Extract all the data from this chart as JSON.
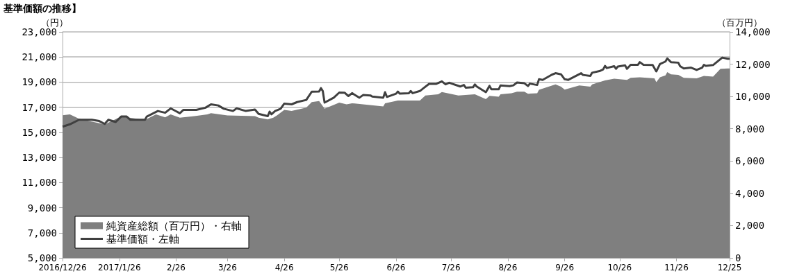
{
  "chart_data": {
    "type": "line",
    "title": "基準価額の推移】",
    "ylabel": "（円）",
    "y2label": "（百万円）",
    "xlim": [
      "2016-12-26",
      "2017-12-25"
    ],
    "xticks": [
      {
        "value": "2016-12-26",
        "label": "2016/12/26"
      },
      {
        "value": "2017-01-26",
        "label": "2017/1/26"
      },
      {
        "value": "2017-02-26",
        "label": "2/26"
      },
      {
        "value": "2017-03-26",
        "label": "3/26"
      },
      {
        "value": "2017-04-26",
        "label": "4/26"
      },
      {
        "value": "2017-05-26",
        "label": "5/26"
      },
      {
        "value": "2017-06-26",
        "label": "6/26"
      },
      {
        "value": "2017-07-26",
        "label": "7/26"
      },
      {
        "value": "2017-08-26",
        "label": "8/26"
      },
      {
        "value": "2017-09-26",
        "label": "9/26"
      },
      {
        "value": "2017-10-26",
        "label": "10/26"
      },
      {
        "value": "2017-11-26",
        "label": "11/26"
      },
      {
        "value": "2017-12-25",
        "label": "12/25"
      }
    ],
    "ylim": [
      5000,
      23000
    ],
    "yticks": [
      {
        "value": 5000,
        "label": "5,000"
      },
      {
        "value": 7000,
        "label": "7,000"
      },
      {
        "value": 9000,
        "label": "9,000"
      },
      {
        "value": 11000,
        "label": "11,000"
      },
      {
        "value": 13000,
        "label": "13,000"
      },
      {
        "value": 15000,
        "label": "15,000"
      },
      {
        "value": 17000,
        "label": "17,000"
      },
      {
        "value": 19000,
        "label": "19,000"
      },
      {
        "value": 21000,
        "label": "21,000"
      },
      {
        "value": 23000,
        "label": "23,000"
      }
    ],
    "y2lim": [
      0,
      14000
    ],
    "y2ticks": [
      0,
      {
        "value": 2000,
        "label": "2,000"
      },
      {
        "value": 4000,
        "label": "4,000"
      },
      {
        "value": 6000,
        "label": "6,000"
      },
      {
        "value": 8000,
        "label": "8,000"
      },
      {
        "value": 10000,
        "label": "10,000"
      },
      {
        "value": 12000,
        "label": "12,000"
      },
      {
        "value": 14000,
        "label": "14,000"
      }
    ],
    "grid": "y",
    "legend": "bottom left",
    "series": [
      {
        "name": "純資産総額（百万円）・右軸",
        "type": "area",
        "axis": "y2",
        "color": "#7f7f7f",
        "x": [
          "2016-12-26",
          "2016-12-30",
          "2017-01-04",
          "2017-01-18",
          "2017-01-27",
          "2017-02-09",
          "2017-02-15",
          "2017-02-20",
          "2017-02-23",
          "2017-02-28",
          "2017-03-08",
          "2017-03-15",
          "2017-03-17",
          "2017-03-26",
          "2017-04-10",
          "2017-04-12",
          "2017-04-17",
          "2017-04-20",
          "2017-04-22",
          "2017-04-26",
          "2017-04-30",
          "2017-05-08",
          "2017-05-11",
          "2017-05-15",
          "2017-05-18",
          "2017-05-26",
          "2017-05-30",
          "2017-06-02",
          "2017-06-19",
          "2017-06-20",
          "2017-06-27",
          "2017-07-09",
          "2017-07-12",
          "2017-07-19",
          "2017-07-21",
          "2017-07-30",
          "2017-08-08",
          "2017-08-14",
          "2017-08-16",
          "2017-08-21",
          "2017-08-22",
          "2017-08-28",
          "2017-08-31",
          "2017-09-04",
          "2017-09-06",
          "2017-09-11",
          "2017-09-12",
          "2017-09-21",
          "2017-09-24",
          "2017-09-26",
          "2017-10-04",
          "2017-10-10",
          "2017-10-11",
          "2017-10-18",
          "2017-10-23",
          "2017-10-30",
          "2017-11-01",
          "2017-11-06",
          "2017-11-14",
          "2017-11-15",
          "2017-11-17",
          "2017-11-20",
          "2017-11-21",
          "2017-11-23",
          "2017-11-27",
          "2017-11-30",
          "2017-12-07",
          "2017-12-11",
          "2017-12-16",
          "2017-12-20",
          "2017-12-24",
          "2017-12-25"
        ],
        "values": [
          8840,
          8890,
          8620,
          8270,
          8760,
          8550,
          8890,
          8710,
          8890,
          8690,
          8780,
          8890,
          8960,
          8820,
          8780,
          8690,
          8580,
          8690,
          8820,
          9170,
          9100,
          9310,
          9650,
          9720,
          9240,
          9620,
          9510,
          9580,
          9380,
          9580,
          9750,
          9750,
          10060,
          10130,
          10270,
          10060,
          10130,
          9830,
          10040,
          9990,
          10130,
          10200,
          10300,
          10300,
          10170,
          10200,
          10410,
          10750,
          10610,
          10430,
          10680,
          10610,
          10750,
          10990,
          11100,
          11030,
          11160,
          11190,
          11120,
          10890,
          11190,
          11300,
          11510,
          11370,
          11340,
          11160,
          11120,
          11270,
          11230,
          11710,
          11740,
          11740
        ]
      },
      {
        "name": "基準価額・左軸",
        "type": "line",
        "color": "#404040",
        "x": [
          "2016-12-26",
          "2016-12-30",
          "2017-01-04",
          "2017-01-11",
          "2017-01-15",
          "2017-01-18",
          "2017-01-20",
          "2017-01-24",
          "2017-01-27",
          "2017-01-30",
          "2017-02-01",
          "2017-02-09",
          "2017-02-10",
          "2017-02-16",
          "2017-02-20",
          "2017-02-23",
          "2017-02-28",
          "2017-03-02",
          "2017-03-09",
          "2017-03-14",
          "2017-03-17",
          "2017-03-21",
          "2017-03-24",
          "2017-03-29",
          "2017-03-31",
          "2017-04-05",
          "2017-04-10",
          "2017-04-12",
          "2017-04-17",
          "2017-04-18",
          "2017-04-19",
          "2017-04-21",
          "2017-04-24",
          "2017-04-26",
          "2017-04-30",
          "2017-05-03",
          "2017-05-08",
          "2017-05-11",
          "2017-05-15",
          "2017-05-16",
          "2017-05-17",
          "2017-05-18",
          "2017-05-23",
          "2017-05-26",
          "2017-05-29",
          "2017-05-31",
          "2017-06-02",
          "2017-06-06",
          "2017-06-08",
          "2017-06-12",
          "2017-06-13",
          "2017-06-19",
          "2017-06-20",
          "2017-06-21",
          "2017-06-26",
          "2017-06-27",
          "2017-06-28",
          "2017-07-03",
          "2017-07-04",
          "2017-07-05",
          "2017-07-09",
          "2017-07-11",
          "2017-07-14",
          "2017-07-18",
          "2017-07-21",
          "2017-07-23",
          "2017-07-25",
          "2017-07-31",
          "2017-08-02",
          "2017-08-03",
          "2017-08-07",
          "2017-08-08",
          "2017-08-09",
          "2017-08-14",
          "2017-08-16",
          "2017-08-17",
          "2017-08-21",
          "2017-08-22",
          "2017-08-27",
          "2017-08-29",
          "2017-08-31",
          "2017-09-04",
          "2017-09-06",
          "2017-09-07",
          "2017-09-11",
          "2017-09-12",
          "2017-09-14",
          "2017-09-19",
          "2017-09-21",
          "2017-09-24",
          "2017-09-26",
          "2017-09-28",
          "2017-10-05",
          "2017-10-06",
          "2017-10-10",
          "2017-10-11",
          "2017-10-15",
          "2017-10-17",
          "2017-10-18",
          "2017-10-19",
          "2017-10-23",
          "2017-10-24",
          "2017-10-25",
          "2017-10-29",
          "2017-10-30",
          "2017-11-01",
          "2017-11-05",
          "2017-11-06",
          "2017-11-08",
          "2017-11-13",
          "2017-11-15",
          "2017-11-17",
          "2017-11-20",
          "2017-11-21",
          "2017-11-23",
          "2017-11-27",
          "2017-11-28",
          "2017-11-30",
          "2017-12-04",
          "2017-12-07",
          "2017-12-10",
          "2017-12-11",
          "2017-12-12",
          "2017-12-16",
          "2017-12-19",
          "2017-12-21",
          "2017-12-24",
          "2017-12-25"
        ],
        "values": [
          15450,
          15640,
          16000,
          16000,
          15900,
          15670,
          16000,
          15820,
          16260,
          16260,
          16000,
          16000,
          16260,
          16700,
          16560,
          16910,
          16520,
          16790,
          16790,
          16960,
          17230,
          17140,
          16880,
          16700,
          16910,
          16700,
          16820,
          16470,
          16290,
          16650,
          16440,
          16700,
          16880,
          17290,
          17230,
          17410,
          17580,
          18240,
          18250,
          18520,
          18290,
          17370,
          17760,
          18170,
          18150,
          17890,
          18120,
          17760,
          17970,
          17940,
          17850,
          17760,
          18200,
          17820,
          18080,
          18250,
          18080,
          18120,
          18290,
          18120,
          18290,
          18520,
          18860,
          18860,
          19060,
          18820,
          18950,
          18650,
          18770,
          18560,
          18590,
          18820,
          18650,
          18200,
          18700,
          18430,
          18430,
          18740,
          18680,
          18740,
          18970,
          18910,
          18690,
          18880,
          18770,
          19230,
          19180,
          19590,
          19710,
          19620,
          19230,
          19180,
          19710,
          19570,
          19500,
          19750,
          19880,
          20010,
          20290,
          20120,
          20270,
          20060,
          20240,
          20330,
          20060,
          20380,
          20380,
          20590,
          20380,
          20360,
          19850,
          20440,
          20640,
          20890,
          20590,
          20550,
          20270,
          20090,
          20150,
          19970,
          20150,
          20380,
          20290,
          20360,
          20720,
          20950,
          20860,
          20860
        ]
      }
    ]
  }
}
